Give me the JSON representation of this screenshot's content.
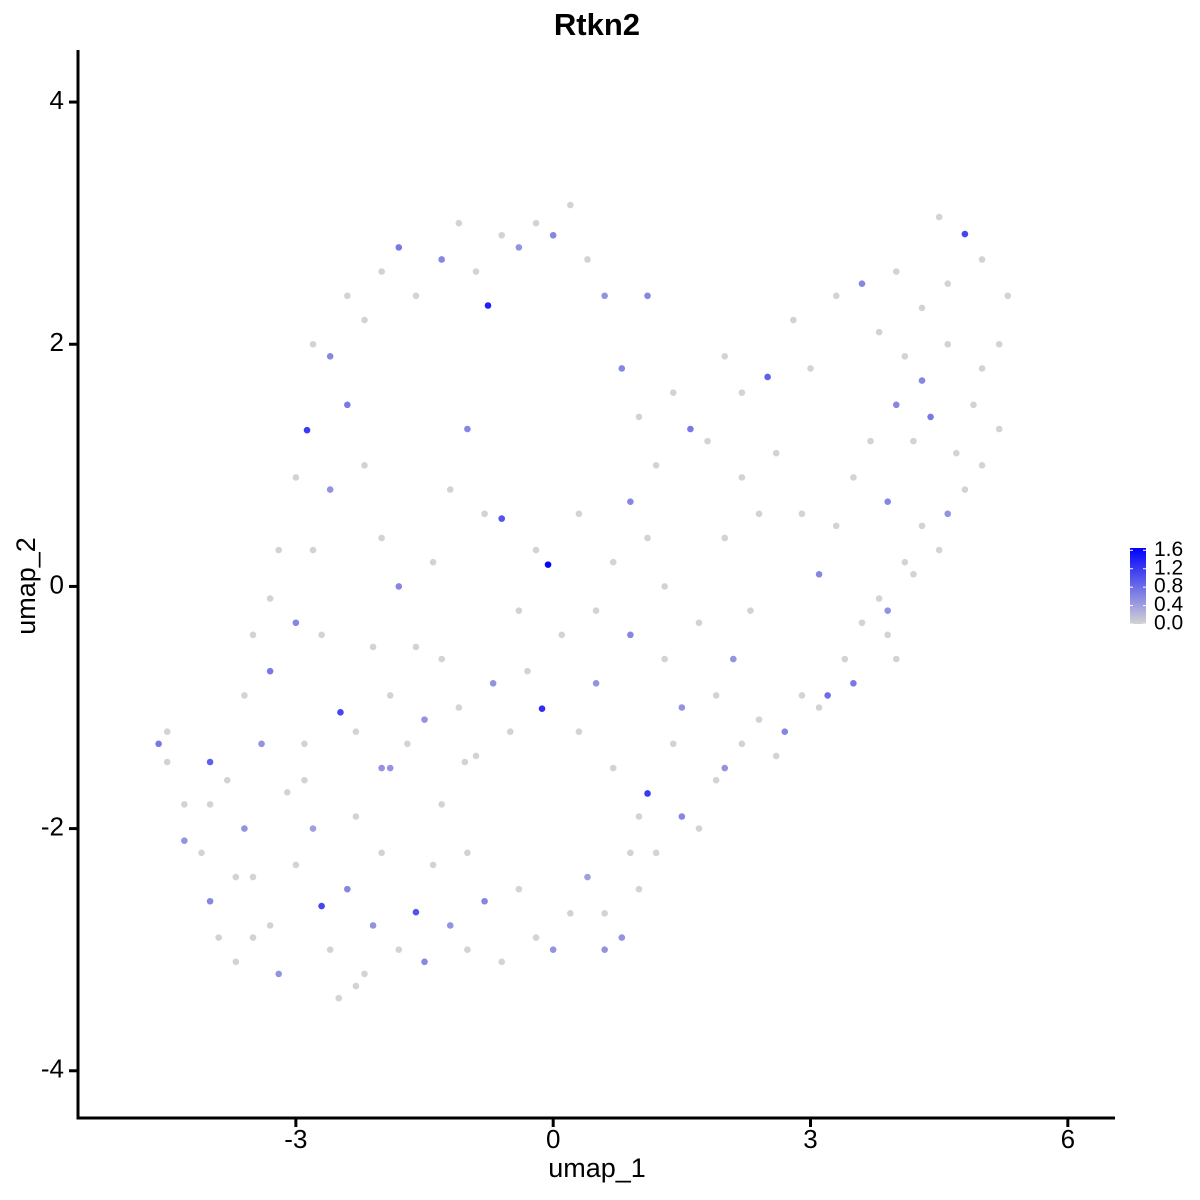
{
  "chart_data": {
    "type": "scatter",
    "title": "Rtkn2",
    "x_label": "umap_1",
    "y_label": "umap_2",
    "xlim": [
      -5.54,
      6.55
    ],
    "ylim": [
      -4.39,
      4.43
    ],
    "xticks": [
      -3,
      0,
      3,
      6
    ],
    "yticks": [
      -4,
      -2,
      0,
      2,
      4
    ],
    "color_scale": {
      "low": "#d3d3d3",
      "high": "#0000ff",
      "lim": [
        0,
        1.65
      ],
      "ticks": [
        {
          "value": 0,
          "label": "0.0"
        },
        0.4,
        0.8,
        1.2,
        1.6
      ]
    },
    "x": [
      -4.6,
      -4.5,
      -4.5,
      -4.3,
      -4.0,
      -4.1,
      -4.0,
      -3.9,
      -3.7,
      -3.6,
      -3.5,
      -3.3,
      -3.2,
      -3.0,
      -2.9,
      -2.8,
      -2.7,
      -2.6,
      -2.5,
      -2.4,
      -2.3,
      -2.2,
      -2.1,
      -2.0,
      -1.9,
      -1.8,
      -1.6,
      -1.5,
      -1.4,
      -1.3,
      -1.2,
      -1.0,
      -0.8,
      -0.6,
      -0.4,
      -0.2,
      0.0,
      0.2,
      0.4,
      0.6,
      0.8,
      0.9,
      1.0,
      1.1,
      1.2,
      1.4,
      1.5,
      1.7,
      1.9,
      2.0,
      2.2,
      2.4,
      2.6,
      2.7,
      2.9,
      3.1,
      3.2,
      3.4,
      3.5,
      3.6,
      3.8,
      3.9,
      4.1,
      4.3,
      4.5,
      4.6,
      4.8,
      5.0,
      5.2,
      5.0,
      5.2,
      5.3,
      5.0,
      4.8,
      4.6,
      4.5,
      4.3,
      4.1,
      4.0,
      3.8,
      3.6,
      3.3,
      3.0,
      2.8,
      2.5,
      2.2,
      2.0,
      1.8,
      1.6,
      1.4,
      1.2,
      1.0,
      0.8,
      0.6,
      0.4,
      0.2,
      0.0,
      -0.2,
      -0.4,
      -0.6,
      -0.76,
      -0.9,
      -1.1,
      -1.3,
      -1.6,
      -1.8,
      -2.0,
      -2.2,
      -2.4,
      -2.6,
      -2.8,
      -2.87,
      -3.0,
      -3.2,
      -3.3,
      -3.5,
      -3.6,
      -3.3,
      -3.0,
      -2.8,
      -2.6,
      -2.4,
      -2.2,
      -2.0,
      -1.8,
      -1.6,
      -1.4,
      -1.2,
      -1.0,
      -0.8,
      -0.6,
      -0.4,
      -0.2,
      -0.06,
      0.1,
      0.3,
      0.5,
      0.7,
      0.9,
      1.1,
      -0.13,
      -0.3,
      -0.5,
      -0.7,
      -0.9,
      -1.1,
      -1.3,
      -1.5,
      -1.7,
      -1.9,
      -2.1,
      -2.3,
      -2.48,
      -2.7,
      -2.9,
      -3.1,
      -3.4,
      -3.8,
      -3.7,
      -2.0,
      0.3,
      0.5,
      0.7,
      0.9,
      1.3,
      1.5,
      1.7,
      1.9,
      2.1,
      2.3,
      2.0,
      2.2,
      2.4,
      2.6,
      2.9,
      3.1,
      3.3,
      3.5,
      3.7,
      3.9,
      4.2,
      4.4,
      4.7,
      4.9,
      4.6,
      4.3,
      4.0,
      1.3,
      1.1,
      -1.03,
      3.9,
      4.2,
      4.0,
      -4.0,
      -4.3,
      -3.5,
      -2.3,
      -1.0,
      0.6,
      1.0
    ],
    "y": [
      -1.3,
      -1.2,
      -1.45,
      -1.8,
      -1.45,
      -2.2,
      -2.6,
      -2.9,
      -3.1,
      -2.0,
      -2.4,
      -2.8,
      -3.2,
      -2.3,
      -1.6,
      -2.0,
      -2.64,
      -3.0,
      -3.4,
      -2.5,
      -1.9,
      -3.2,
      -2.8,
      -2.2,
      -1.5,
      -3.0,
      -2.69,
      -3.1,
      -2.3,
      -1.8,
      -2.8,
      -2.2,
      -2.6,
      -3.1,
      -2.5,
      -2.9,
      -3.0,
      -2.7,
      -2.4,
      -2.7,
      -2.9,
      -2.2,
      -1.9,
      -1.71,
      -2.2,
      -1.3,
      -1.9,
      -2.0,
      -1.6,
      -1.5,
      -1.3,
      -1.1,
      -1.4,
      -1.2,
      -0.9,
      -1.0,
      -0.9,
      -0.6,
      -0.8,
      -0.3,
      -0.1,
      -0.2,
      0.2,
      0.5,
      0.3,
      0.6,
      0.8,
      1.0,
      1.3,
      1.8,
      2.0,
      2.4,
      2.7,
      2.91,
      2.5,
      3.05,
      2.3,
      1.9,
      1.5,
      2.1,
      2.5,
      2.4,
      1.8,
      2.2,
      1.73,
      1.6,
      1.9,
      1.2,
      1.3,
      1.6,
      1.0,
      1.4,
      1.8,
      2.4,
      2.7,
      3.15,
      2.9,
      3.0,
      2.8,
      2.9,
      2.32,
      2.6,
      3.0,
      2.7,
      2.4,
      2.8,
      2.6,
      2.2,
      2.4,
      1.9,
      2.0,
      1.29,
      0.9,
      0.3,
      -0.1,
      -0.4,
      -0.9,
      -0.7,
      -0.3,
      0.3,
      0.8,
      1.5,
      1.0,
      0.4,
      0.0,
      -0.5,
      0.2,
      0.8,
      1.3,
      0.6,
      0.56,
      -0.2,
      0.3,
      0.18,
      -0.4,
      0.6,
      -0.2,
      0.2,
      0.7,
      0.4,
      -1.01,
      -0.7,
      -1.2,
      -0.8,
      -1.4,
      -1.0,
      -0.6,
      -1.1,
      -1.3,
      -0.9,
      -0.5,
      -1.2,
      -1.04,
      -0.4,
      -1.3,
      -1.7,
      -1.3,
      -1.6,
      -2.4,
      -1.5,
      -1.2,
      -0.8,
      -1.5,
      -0.4,
      -0.6,
      -1.0,
      -0.3,
      -0.9,
      -0.6,
      -0.2,
      0.4,
      0.9,
      0.6,
      1.1,
      0.6,
      0.1,
      0.5,
      0.9,
      1.2,
      0.7,
      1.2,
      1.4,
      1.1,
      1.5,
      2.0,
      1.7,
      2.6,
      0.0,
      2.4,
      -1.45,
      -0.4,
      0.1,
      -0.6,
      -1.8,
      -2.1,
      -2.9,
      -3.3,
      -3.0,
      -3.0,
      -2.5
    ],
    "values": [
      0.7,
      0,
      0,
      0,
      0.9,
      0,
      0.6,
      0,
      0,
      0.5,
      0,
      0,
      0.5,
      0,
      0,
      0.4,
      1.1,
      0,
      0,
      0.6,
      0,
      0,
      0.5,
      0,
      0.5,
      0,
      1.0,
      0.6,
      0,
      0,
      0.5,
      0,
      0.6,
      0,
      0,
      0,
      0.5,
      0,
      0.4,
      0,
      0.5,
      0,
      0,
      1.2,
      0,
      0,
      0.6,
      0,
      0,
      0.5,
      0,
      0,
      0,
      0.6,
      0,
      0,
      0.8,
      0,
      0.7,
      0,
      0,
      0.5,
      0,
      0,
      0,
      0.5,
      0,
      0,
      0,
      0,
      0,
      0,
      0,
      1.1,
      0,
      0,
      0,
      0,
      0.6,
      0,
      0.6,
      0,
      0,
      0,
      0.9,
      0,
      0,
      0,
      0.7,
      0,
      0,
      0,
      0.6,
      0.5,
      0,
      0,
      0.6,
      0,
      0.5,
      0,
      1.4,
      0,
      0,
      0.6,
      0,
      0.7,
      0,
      0,
      0,
      0.6,
      0,
      1.2,
      0,
      0,
      0,
      0,
      0,
      0.7,
      0.6,
      0,
      0.5,
      0.7,
      0,
      0,
      0.6,
      0,
      0,
      0,
      0.6,
      0,
      1.0,
      0,
      0,
      1.6,
      0,
      0,
      0,
      0,
      0.6,
      0,
      1.3,
      0,
      0,
      0.5,
      0,
      0,
      0,
      0.5,
      0,
      0,
      0,
      0,
      1.1,
      0,
      0,
      0,
      0.5,
      0,
      0,
      0.5,
      0,
      0.5,
      0,
      0.6,
      0,
      0.5,
      0,
      0,
      0.5,
      0,
      0,
      0,
      0,
      0,
      0,
      0.6,
      0,
      0,
      0,
      0.6,
      0,
      0.7,
      0,
      0,
      0,
      0.6,
      0,
      0,
      0.6,
      0,
      0,
      0,
      0,
      0,
      0.5,
      0,
      0,
      0,
      0.5,
      0
    ]
  }
}
